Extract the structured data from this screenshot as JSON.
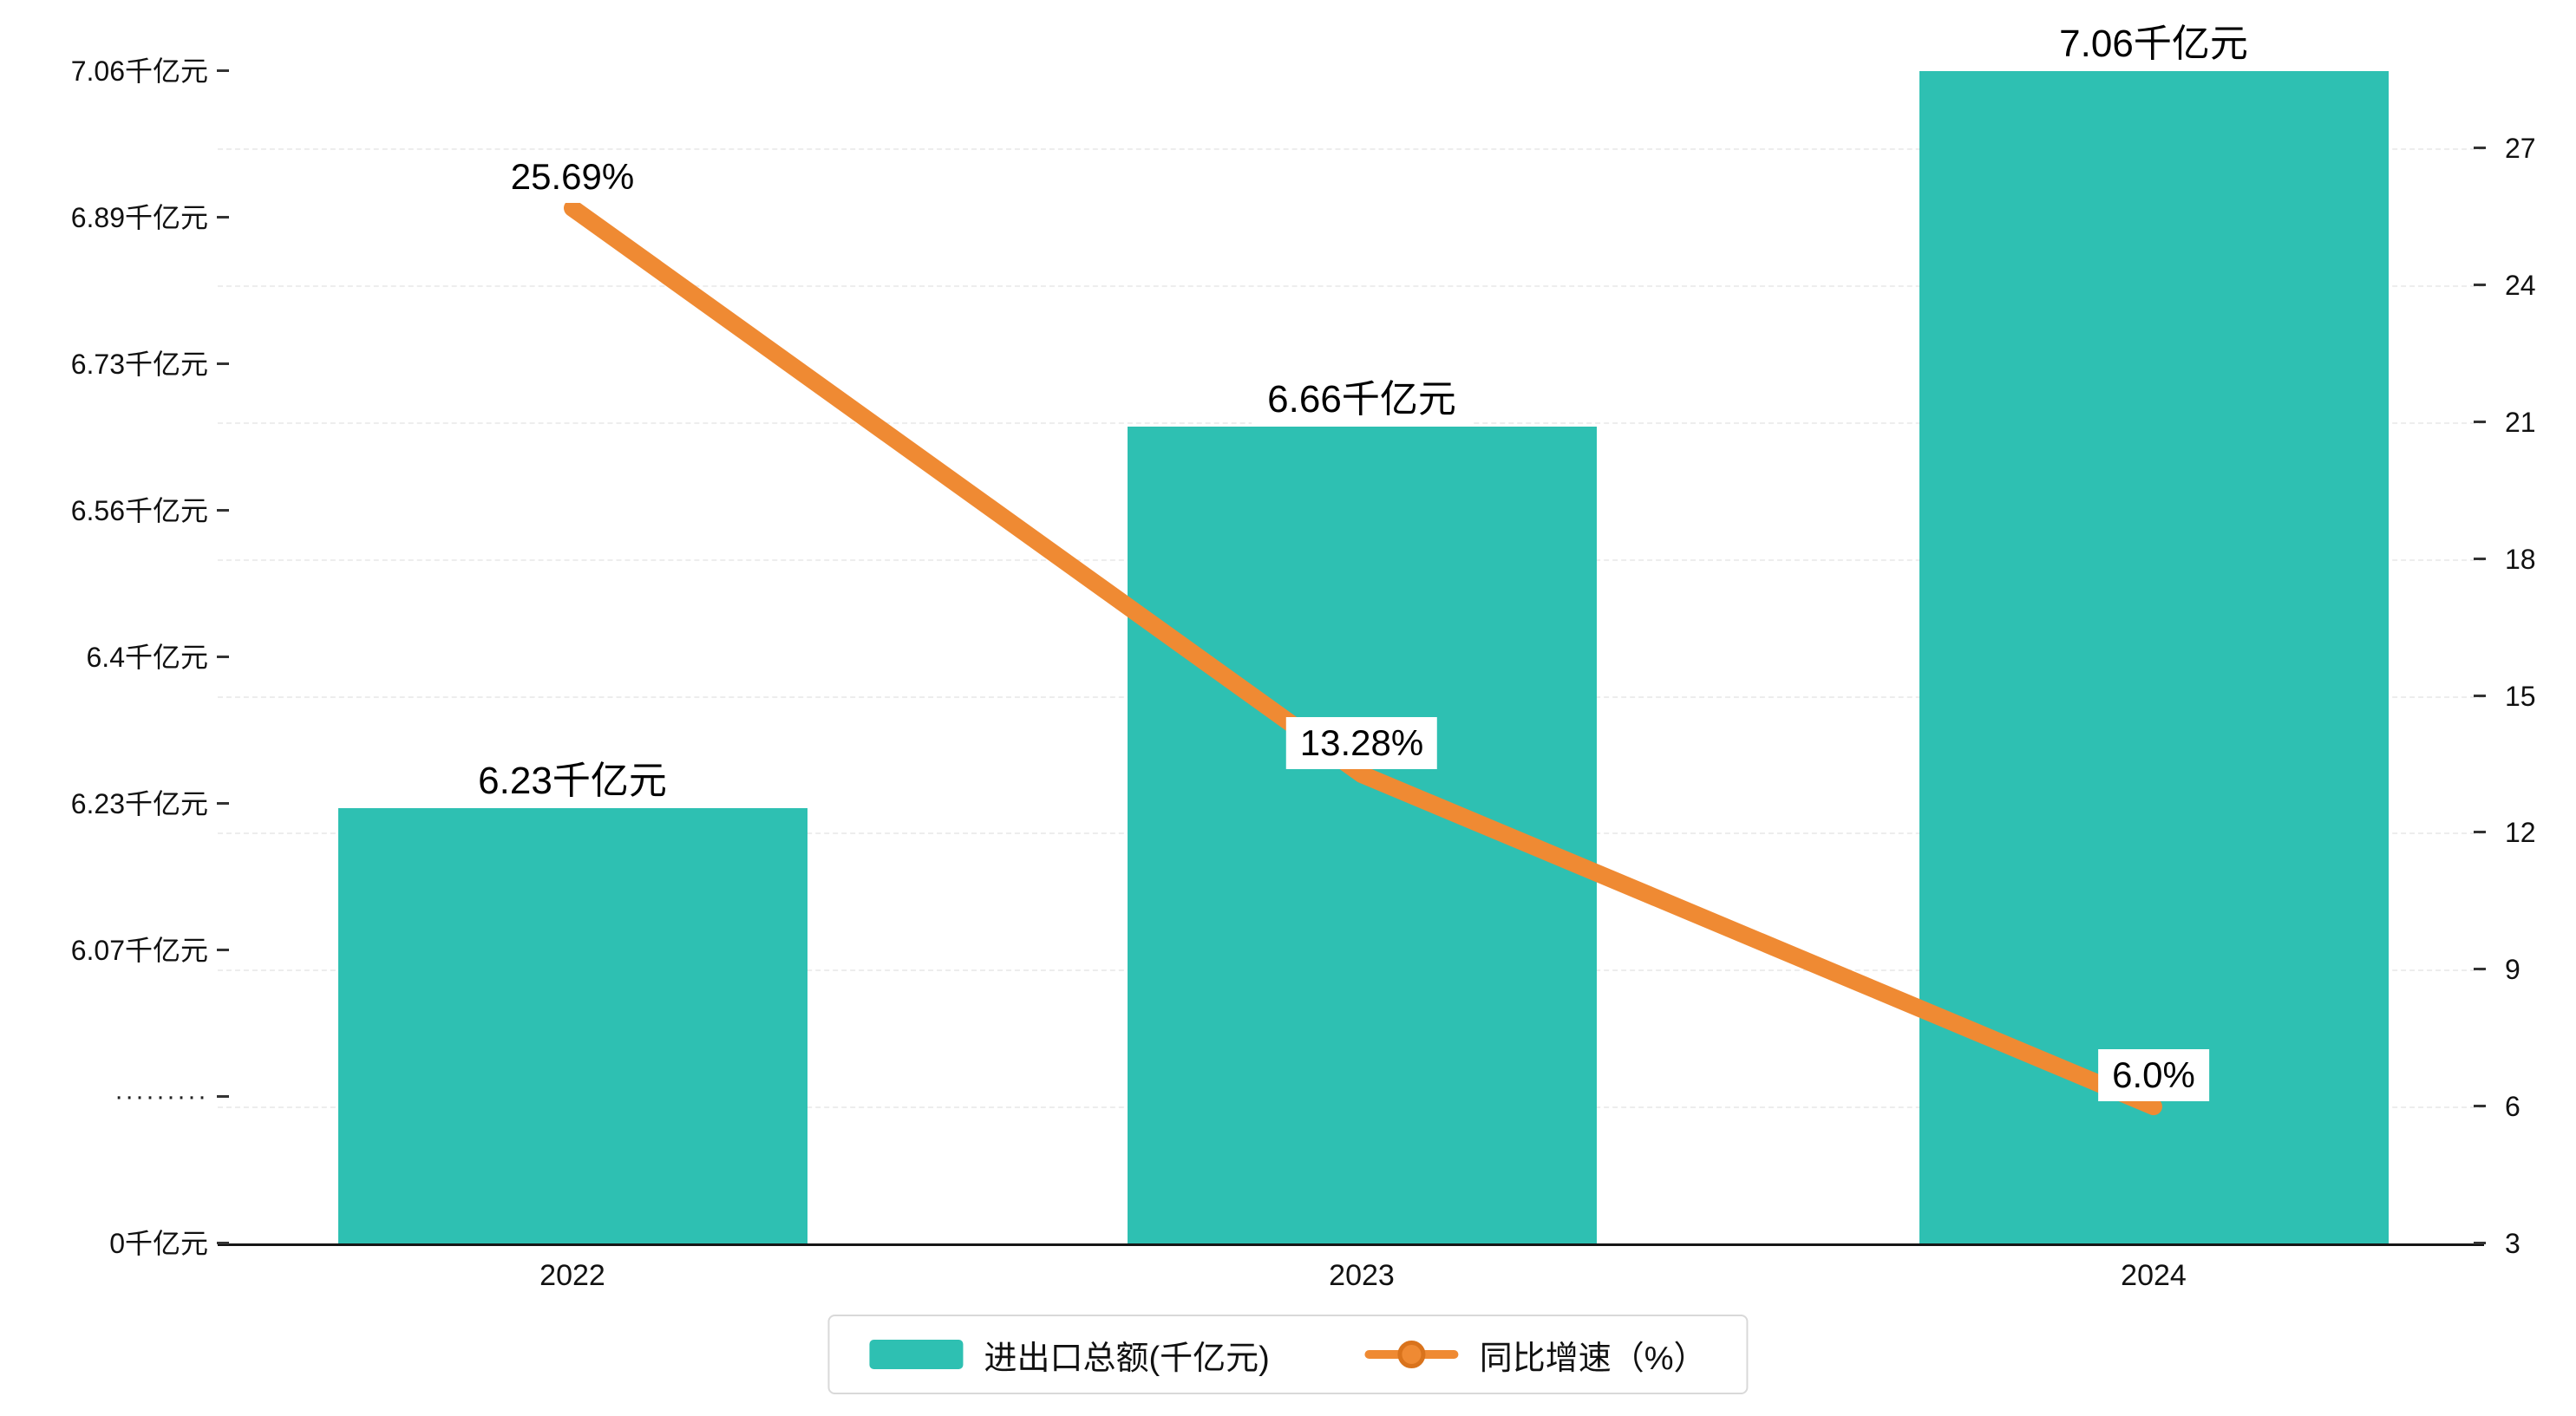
{
  "chart_data": {
    "type": "bar",
    "subtype": "bar-line-combo",
    "categories": [
      "2022",
      "2023",
      "2024"
    ],
    "series": [
      {
        "name": "进出口总额(千亿元)",
        "type": "bar",
        "axis": "left",
        "values": [
          6.23,
          6.66,
          7.06
        ],
        "data_labels": [
          "6.23千亿元",
          "6.66千亿元",
          "7.06千亿元"
        ]
      },
      {
        "name": "同比增速（%）",
        "type": "line",
        "axis": "right",
        "values": [
          25.69,
          13.28,
          6.0
        ],
        "data_labels": [
          "25.69%",
          "13.28%",
          "6.0%"
        ]
      }
    ],
    "left_axis": {
      "tick_labels": [
        "7.06千亿元",
        "6.89千亿元",
        "6.73千亿元",
        "6.56千亿元",
        "6.4千亿元",
        "6.23千亿元",
        "6.07千亿元",
        "·········",
        "0千亿元"
      ],
      "break_marker": "·········"
    },
    "right_axis": {
      "tick_labels": [
        "27",
        "24",
        "21",
        "18",
        "15",
        "12",
        "9",
        "6",
        "3"
      ],
      "min": 3,
      "max": 27,
      "step": 3
    },
    "x_axis": {
      "tick_labels": [
        "2022",
        "2023",
        "2024"
      ]
    },
    "legend": {
      "position": "bottom-center",
      "items": [
        {
          "label": "进出口总额(千亿元)",
          "marker": "bar-swatch"
        },
        {
          "label": "同比增速（%）",
          "marker": "line-dot"
        }
      ]
    },
    "grid": "dashed-horizontal",
    "ylim_right": [
      3,
      27
    ]
  },
  "colors": {
    "bar": "#2EC0B2",
    "line": "#EF8A33",
    "line_dark": "#D9731C",
    "axis": "#161616",
    "text": "#000000",
    "label_bg": "#ffffff",
    "legend_border": "#d9d9d9"
  }
}
